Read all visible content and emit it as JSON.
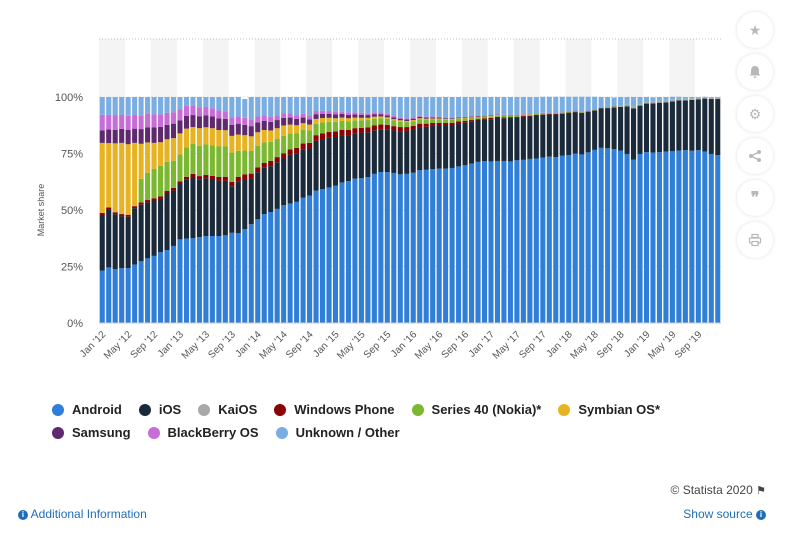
{
  "chart_data": {
    "type": "stacked-bar",
    "ylabel": "Market share",
    "ylim": [
      0,
      100
    ],
    "yticks": [
      "0%",
      "25%",
      "50%",
      "75%",
      "100%"
    ],
    "ytick_values": [
      0,
      25,
      50,
      75,
      100
    ],
    "categories": [
      "Jan '12",
      "Feb '12",
      "Mar '12",
      "Apr '12",
      "May '12",
      "Jun '12",
      "Jul '12",
      "Aug '12",
      "Sep '12",
      "Oct '12",
      "Nov '12",
      "Dec '12",
      "Jan '13",
      "Feb '13",
      "Mar '13",
      "Apr '13",
      "May '13",
      "Jun '13",
      "Jul '13",
      "Aug '13",
      "Sep '13",
      "Oct '13",
      "Nov '13",
      "Dec '13",
      "Jan '14",
      "Feb '14",
      "Mar '14",
      "Apr '14",
      "May '14",
      "Jun '14",
      "Jul '14",
      "Aug '14",
      "Sep '14",
      "Oct '14",
      "Nov '14",
      "Dec '14",
      "Jan '15",
      "Feb '15",
      "Mar '15",
      "Apr '15",
      "May '15",
      "Jun '15",
      "Jul '15",
      "Aug '15",
      "Sep '15",
      "Oct '15",
      "Nov '15",
      "Dec '15",
      "Jan '16",
      "Feb '16",
      "Mar '16",
      "Apr '16",
      "May '16",
      "Jun '16",
      "Jul '16",
      "Aug '16",
      "Sep '16",
      "Oct '16",
      "Nov '16",
      "Dec '16",
      "Jan '17",
      "Feb '17",
      "Mar '17",
      "Apr '17",
      "May '17",
      "Jun '17",
      "Jul '17",
      "Aug '17",
      "Sep '17",
      "Oct '17",
      "Nov '17",
      "Dec '17",
      "Jan '18",
      "Feb '18",
      "Mar '18",
      "Apr '18",
      "May '18",
      "Jun '18",
      "Jul '18",
      "Aug '18",
      "Sep '18",
      "Oct '18",
      "Nov '18",
      "Dec '18",
      "Jan '19",
      "Feb '19",
      "Mar '19",
      "Apr '19",
      "May '19",
      "Jun '19",
      "Jul '19",
      "Aug '19",
      "Sep '19",
      "Oct '19",
      "Nov '19",
      "Dec '19"
    ],
    "xtick_labels": [
      "Jan '12",
      "May '12",
      "Sep '12",
      "Jan '13",
      "May '13",
      "Sep '13",
      "Jan '14",
      "May '14",
      "Sep '14",
      "Jan '15",
      "May '15",
      "Sep '15",
      "Jan '16",
      "May '16",
      "Sep '16",
      "Jan '17",
      "May '17",
      "Sep '17",
      "Jan '18",
      "May '18",
      "Sep '18",
      "Jan '19",
      "May '19",
      "Sep '19"
    ],
    "series": [
      {
        "name": "Android",
        "color": "#2f7ed8",
        "values": [
          23.2,
          24.6,
          23.8,
          24.3,
          24.3,
          25.9,
          27.3,
          28.6,
          29.7,
          31.3,
          32.3,
          34.1,
          37.0,
          37.4,
          37.5,
          38.0,
          38.5,
          38.5,
          38.5,
          38.8,
          39.9,
          39.7,
          41.6,
          43.7,
          45.9,
          48.2,
          49.1,
          50.5,
          52.2,
          52.9,
          53.6,
          55.4,
          56.4,
          58.6,
          59.2,
          60.0,
          60.8,
          62.2,
          62.8,
          63.9,
          64.1,
          64.6,
          66.0,
          66.8,
          66.8,
          66.4,
          65.8,
          66.0,
          66.5,
          67.6,
          67.8,
          68.1,
          68.3,
          68.3,
          68.6,
          69.3,
          69.8,
          70.5,
          71.3,
          71.6,
          71.5,
          71.7,
          71.7,
          71.5,
          72.0,
          72.2,
          72.6,
          72.8,
          73.2,
          73.6,
          73.4,
          74.0,
          74.3,
          75.0,
          74.6,
          75.5,
          76.6,
          77.5,
          77.3,
          76.9,
          76.3,
          74.8,
          72.3,
          74.8,
          75.6,
          75.4,
          75.6,
          75.9,
          76.0,
          76.3,
          76.5,
          76.2,
          76.5,
          75.9,
          74.8,
          74.3
        ]
      },
      {
        "name": "iOS",
        "color": "#1a2a3a",
        "values": [
          24.6,
          25.6,
          24.3,
          23.0,
          22.7,
          24.9,
          25.0,
          24.8,
          24.5,
          23.6,
          25.0,
          24.5,
          24.5,
          26.0,
          27.1,
          25.6,
          25.5,
          25.0,
          24.5,
          24.1,
          20.6,
          23.0,
          22.1,
          20.2,
          20.8,
          20.5,
          20.3,
          20.6,
          20.6,
          21.6,
          21.5,
          21.5,
          20.8,
          22.0,
          22.2,
          22.0,
          21.5,
          20.8,
          20.2,
          20.0,
          20.0,
          19.8,
          19.3,
          18.9,
          18.9,
          18.8,
          19.1,
          19.0,
          19.1,
          19.1,
          19.0,
          19.1,
          19.1,
          19.1,
          19.0,
          19.0,
          18.8,
          18.6,
          18.3,
          18.3,
          18.7,
          19.0,
          18.9,
          19.2,
          18.9,
          19.1,
          18.8,
          19.0,
          18.9,
          18.7,
          18.9,
          18.6,
          18.6,
          18.3,
          18.3,
          18.0,
          17.4,
          17.5,
          17.8,
          18.5,
          19.3,
          21.0,
          22.7,
          21.4,
          21.5,
          21.8,
          21.9,
          21.7,
          22.0,
          22.2,
          22.0,
          22.5,
          22.5,
          23.4,
          24.3,
          24.8
        ]
      },
      {
        "name": "KaiOS",
        "color": "#a8a8a8",
        "values": [
          0,
          0,
          0,
          0,
          0,
          0,
          0,
          0,
          0,
          0,
          0,
          0,
          0,
          0,
          0,
          0,
          0,
          0,
          0,
          0,
          0,
          0,
          0,
          0,
          0,
          0,
          0,
          0,
          0,
          0,
          0,
          0,
          0,
          0,
          0,
          0,
          0,
          0,
          0,
          0,
          0,
          0,
          0,
          0,
          0,
          0,
          0,
          0,
          0,
          0,
          0,
          0,
          0,
          0,
          0,
          0,
          0,
          0,
          0,
          0,
          0,
          0,
          0,
          0,
          0,
          0,
          0,
          0,
          0,
          0,
          0,
          0,
          0,
          0,
          0,
          0,
          0,
          0,
          0.2,
          0.3,
          0.4,
          0.5,
          0.6,
          0.6,
          0.6,
          0.6,
          0.7,
          0.7,
          0.7,
          0.7,
          0.6,
          0.6,
          0.6,
          0.6,
          0.6,
          0.5
        ]
      },
      {
        "name": "Windows Phone",
        "color": "#8b0000",
        "values": [
          0.9,
          0.9,
          0.9,
          0.9,
          0.9,
          0.9,
          1.0,
          1.0,
          1.0,
          1.1,
          1.2,
          1.2,
          1.2,
          1.3,
          1.4,
          1.4,
          1.5,
          1.6,
          1.6,
          1.8,
          1.9,
          2.0,
          2.1,
          2.2,
          2.2,
          2.2,
          2.3,
          2.3,
          2.3,
          2.3,
          2.4,
          2.5,
          2.5,
          2.5,
          2.5,
          2.5,
          2.5,
          2.4,
          2.4,
          2.3,
          2.2,
          2.2,
          2.1,
          2.1,
          2.0,
          1.9,
          1.8,
          1.7,
          1.6,
          1.5,
          1.4,
          1.3,
          1.2,
          1.1,
          1.0,
          0.9,
          0.8,
          0.7,
          0.6,
          0.6,
          0.5,
          0.5,
          0.4,
          0.4,
          0.3,
          0.3,
          0.3,
          0.3,
          0.2,
          0.2,
          0.2,
          0.2,
          0.2,
          0.2,
          0.1,
          0.1,
          0.1,
          0.1,
          0.1,
          0.1,
          0.1,
          0.1,
          0,
          0,
          0,
          0,
          0,
          0,
          0,
          0,
          0,
          0,
          0,
          0,
          0,
          0
        ]
      },
      {
        "name": "Series 40 (Nokia)*",
        "color": "#7cb82f",
        "values": [
          0,
          0,
          0,
          0,
          0,
          0,
          10.5,
          12.0,
          13.0,
          13.5,
          12.8,
          12.0,
          11.9,
          13.0,
          13.2,
          13.4,
          13.5,
          13.6,
          13.5,
          13.4,
          13.0,
          11.5,
          10.5,
          10.0,
          9.5,
          9.0,
          8.5,
          8.0,
          7.7,
          7.0,
          6.5,
          6.0,
          5.5,
          5.0,
          4.8,
          4.5,
          4.2,
          4.0,
          3.8,
          3.5,
          3.4,
          3.2,
          3.0,
          2.8,
          2.6,
          2.5,
          2.4,
          2.2,
          2.1,
          2.0,
          1.8,
          1.7,
          1.6,
          1.4,
          1.3,
          1.2,
          1.1,
          1.0,
          0.9,
          0.8,
          0.8,
          0.7,
          0.6,
          0.6,
          0.5,
          0.5,
          0.5,
          0.4,
          0.4,
          0.4,
          0.4,
          0.3,
          0.3,
          0.3,
          0.3,
          0.2,
          0.2,
          0.2,
          0.2,
          0.2,
          0.2,
          0.2,
          0.1,
          0.1,
          0.1,
          0.1,
          0.1,
          0.1,
          0.1,
          0.1,
          0.1,
          0.1,
          0.1,
          0.1,
          0.1,
          0.1
        ]
      },
      {
        "name": "Symbian OS*",
        "color": "#e8b321",
        "values": [
          31.0,
          28.5,
          30.5,
          31.5,
          31.2,
          28.0,
          15.5,
          13.5,
          11.5,
          10.5,
          10.0,
          10.0,
          9.3,
          8.3,
          7.5,
          7.8,
          7.6,
          7.5,
          7.3,
          7.2,
          7.4,
          7.2,
          6.8,
          6.5,
          6.0,
          5.5,
          5.0,
          4.8,
          4.6,
          4.0,
          3.5,
          3.0,
          2.6,
          2.2,
          2.0,
          1.8,
          1.6,
          1.5,
          1.4,
          1.2,
          1.1,
          1.0,
          0.9,
          0.8,
          0.7,
          0.6,
          0.6,
          0.5,
          0.5,
          0.4,
          0.4,
          0.3,
          0.3,
          0.3,
          0.3,
          0.2,
          0.2,
          0.2,
          0.2,
          0.1,
          0.1,
          0.1,
          0.1,
          0.1,
          0.1,
          0.1,
          0.1,
          0.1,
          0.1,
          0,
          0,
          0,
          0,
          0,
          0,
          0,
          0,
          0,
          0,
          0,
          0,
          0,
          0,
          0,
          0,
          0,
          0,
          0,
          0,
          0,
          0,
          0,
          0,
          0,
          0,
          0
        ]
      },
      {
        "name": "Samsung",
        "color": "#5e2a6d",
        "values": [
          5.5,
          6.0,
          6.0,
          6.2,
          6.3,
          6.3,
          6.5,
          6.7,
          6.8,
          6.8,
          6.4,
          6.4,
          5.8,
          5.6,
          5.3,
          5.3,
          5.3,
          5.2,
          5.1,
          5.0,
          4.9,
          4.8,
          4.6,
          4.5,
          4.3,
          4.0,
          3.8,
          3.6,
          3.4,
          3.1,
          2.8,
          2.5,
          2.3,
          2.1,
          1.9,
          1.8,
          1.7,
          1.6,
          1.5,
          1.4,
          1.3,
          1.2,
          1.1,
          1.0,
          0.9,
          0.8,
          0.7,
          0.7,
          0.6,
          0.6,
          0.5,
          0.5,
          0.4,
          0.4,
          0.4,
          0.3,
          0.3,
          0.3,
          0.3,
          0.2,
          0.2,
          0.2,
          0.2,
          0.2,
          0.2,
          0.1,
          0.1,
          0.1,
          0.1,
          0.1,
          0.1,
          0.1,
          0.1,
          0.1,
          0.1,
          0.1,
          0.1,
          0.1,
          0.1,
          0,
          0,
          0,
          0,
          0,
          0,
          0,
          0,
          0,
          0,
          0,
          0,
          0,
          0,
          0,
          0,
          0
        ]
      },
      {
        "name": "BlackBerry OS",
        "color": "#c86dd7",
        "values": [
          6.9,
          6.5,
          6.5,
          6.3,
          6.3,
          6.2,
          6.1,
          5.9,
          5.8,
          5.5,
          5.3,
          5.1,
          4.8,
          4.4,
          4.2,
          4.0,
          3.8,
          3.6,
          3.5,
          3.4,
          3.3,
          3.2,
          3.1,
          2.9,
          2.7,
          2.5,
          2.3,
          2.1,
          1.9,
          1.8,
          1.7,
          1.6,
          1.5,
          1.4,
          1.3,
          1.2,
          1.1,
          1.0,
          1.0,
          0.9,
          0.9,
          0.8,
          0.8,
          0.7,
          0.7,
          0.6,
          0.6,
          0.5,
          0.5,
          0.5,
          0.4,
          0.4,
          0.4,
          0.4,
          0.3,
          0.3,
          0.3,
          0.3,
          0.3,
          0.2,
          0.2,
          0.2,
          0.2,
          0.2,
          0.2,
          0.2,
          0.1,
          0.1,
          0.1,
          0.1,
          0.1,
          0.1,
          0.1,
          0.1,
          0.1,
          0.1,
          0.1,
          0,
          0,
          0,
          0,
          0,
          0,
          0,
          0,
          0,
          0,
          0,
          0,
          0,
          0,
          0,
          0,
          0,
          0,
          0
        ]
      },
      {
        "name": "Unknown / Other",
        "color": "#7aaee3",
        "values": [
          7.9,
          7.9,
          8.0,
          7.8,
          8.3,
          7.8,
          8.1,
          7.5,
          7.7,
          7.7,
          7.0,
          6.7,
          5.5,
          4.0,
          3.8,
          4.5,
          4.3,
          5.0,
          6.0,
          6.3,
          9.0,
          8.6,
          8.3,
          10.0,
          8.6,
          8.1,
          8.7,
          8.1,
          7.3,
          7.3,
          8.0,
          7.5,
          8.4,
          6.2,
          6.1,
          6.2,
          6.6,
          6.5,
          6.9,
          6.8,
          7.0,
          7.2,
          6.8,
          6.9,
          7.4,
          8.4,
          9.0,
          9.4,
          9.1,
          8.3,
          8.7,
          8.6,
          8.7,
          9.0,
          9.1,
          8.8,
          8.7,
          8.4,
          8.1,
          8.2,
          8.0,
          7.6,
          7.9,
          7.8,
          7.8,
          7.5,
          7.5,
          7.2,
          7.1,
          7.0,
          7.0,
          6.8,
          6.5,
          6.1,
          6.6,
          6.1,
          5.6,
          4.6,
          4.3,
          3.8,
          3.7,
          3.4,
          4.3,
          3.1,
          2.2,
          2.0,
          1.7,
          1.6,
          1.3,
          0.8,
          0.8,
          0.6,
          0.3,
          0.1,
          0.2,
          0.3
        ]
      }
    ]
  },
  "sidebar": {
    "buttons": [
      "star-icon",
      "bell-icon",
      "gear-icon",
      "share-icon",
      "quote-icon",
      "print-icon"
    ]
  },
  "footer": {
    "copyright": "© Statista 2020",
    "additional_info": "Additional Information",
    "show_source": "Show source"
  }
}
